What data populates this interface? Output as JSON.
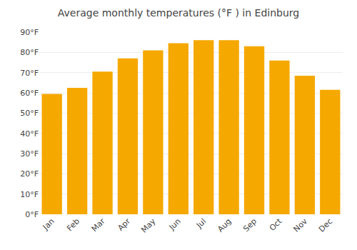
{
  "chart_data": {
    "type": "bar",
    "title": "Average monthly temperatures (°F ) in Edinburg",
    "categories": [
      "Jan",
      "Feb",
      "Mar",
      "Apr",
      "May",
      "Jun",
      "Jul",
      "Aug",
      "Sep",
      "Oct",
      "Nov",
      "Dec"
    ],
    "values": [
      59.5,
      62.5,
      70.5,
      77.0,
      81.0,
      84.5,
      86.0,
      86.0,
      83.0,
      76.0,
      68.5,
      61.5
    ],
    "color": "#F5A800",
    "ylim": [
      0,
      90
    ],
    "yticks": [
      {
        "value": 0,
        "label": "0°F"
      },
      {
        "value": 10,
        "label": "10°F"
      },
      {
        "value": 20,
        "label": "20°F"
      },
      {
        "value": 30,
        "label": "30°F"
      },
      {
        "value": 40,
        "label": "40°F"
      },
      {
        "value": 50,
        "label": "50°F"
      },
      {
        "value": 60,
        "label": "60°F"
      },
      {
        "value": 70,
        "label": "70°F"
      },
      {
        "value": 80,
        "label": "80°F"
      },
      {
        "value": 90,
        "label": "90°F"
      }
    ],
    "grid": true
  }
}
